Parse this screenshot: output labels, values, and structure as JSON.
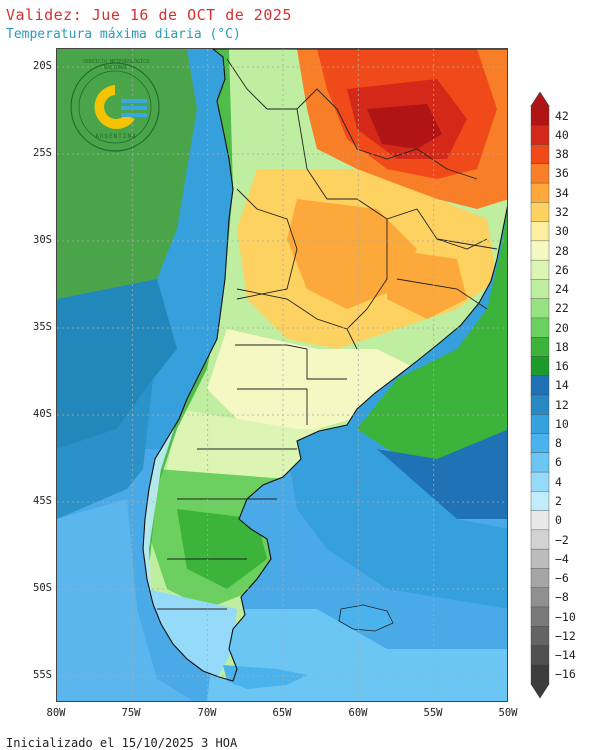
{
  "header": {
    "title": "Validez: Jue 16 de OCT de 2025",
    "subtitle": "Temperatura máxima diaria (°C)"
  },
  "footer": {
    "init_text": "Inicializado el 15/10/2025 3 HOA"
  },
  "colors": {
    "title": "#d83030",
    "subtitle": "#2a9bb8",
    "ocean_north": "#4aa54a",
    "ocean_mid": "#2288bb",
    "ocean_south": "#4aaae8"
  },
  "map": {
    "lat_labels": [
      "20S",
      "25S",
      "30S",
      "35S",
      "40S",
      "45S",
      "50S",
      "55S"
    ],
    "lon_labels": [
      "80W",
      "75W",
      "70W",
      "65W",
      "60W",
      "55W",
      "50W"
    ],
    "logo_text": "SERVICIO METEOROLÓGICO NACIONAL",
    "logo_bottom_text": "ARGENTINA",
    "islands_label": ""
  },
  "colorbar": {
    "levels": [
      {
        "label": "42",
        "color": "#b01414"
      },
      {
        "label": "40",
        "color": "#d42818"
      },
      {
        "label": "38",
        "color": "#f04a1a"
      },
      {
        "label": "36",
        "color": "#f87e28"
      },
      {
        "label": "34",
        "color": "#fca83a"
      },
      {
        "label": "32",
        "color": "#fdd260"
      },
      {
        "label": "30",
        "color": "#fdeea0"
      },
      {
        "label": "28",
        "color": "#f6f8c4"
      },
      {
        "label": "26",
        "color": "#dcf5b4"
      },
      {
        "label": "24",
        "color": "#bfeea0"
      },
      {
        "label": "22",
        "color": "#98e284"
      },
      {
        "label": "20",
        "color": "#6cd060"
      },
      {
        "label": "18",
        "color": "#3cb43c"
      },
      {
        "label": "16",
        "color": "#1e9a2a"
      },
      {
        "label": "14",
        "color": "#1f72b4"
      },
      {
        "label": "12",
        "color": "#2888c4"
      },
      {
        "label": "10",
        "color": "#36a0dc"
      },
      {
        "label": "8",
        "color": "#4ab2ec"
      },
      {
        "label": "6",
        "color": "#6cc6f4"
      },
      {
        "label": "4",
        "color": "#96dafa"
      },
      {
        "label": "2",
        "color": "#c0ecfc"
      },
      {
        "label": "0",
        "color": "#e8e8e8"
      },
      {
        "label": "−2",
        "color": "#d2d2d2"
      },
      {
        "label": "−4",
        "color": "#bcbcbc"
      },
      {
        "label": "−6",
        "color": "#a6a6a6"
      },
      {
        "label": "−8",
        "color": "#909090"
      },
      {
        "label": "−10",
        "color": "#7a7a7a"
      },
      {
        "label": "−12",
        "color": "#646464"
      },
      {
        "label": "−14",
        "color": "#505050"
      },
      {
        "label": "−16",
        "color": "#3c3c3c"
      }
    ]
  }
}
